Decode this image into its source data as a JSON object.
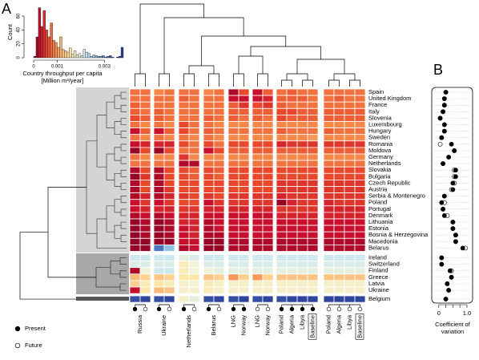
{
  "chart_data": [
    {
      "type": "histogram",
      "ylabel": "Count",
      "xlabel": [
        "Country throughput per capita",
        "[Million m³/year]"
      ],
      "bins": [
        0,
        0.0001,
        0.0002,
        0.0003,
        0.0004,
        0.0005,
        0.0006,
        0.0007,
        0.0008,
        0.0009,
        0.001,
        0.0011,
        0.0012,
        0.0013,
        0.0014,
        0.0015,
        0.0016,
        0.0017,
        0.0018,
        0.0019,
        0.002,
        0.0021,
        0.0022,
        0.0023,
        0.0024,
        0.0025,
        0.0026,
        0.0027,
        0.0028,
        0.0029,
        0.003,
        0.0031,
        0.0032,
        0.0033,
        0.0034,
        0.0035,
        0.0036,
        0.0037,
        0.0038
      ],
      "values": [
        2,
        30,
        72,
        45,
        68,
        40,
        30,
        50,
        25,
        22,
        15,
        30,
        12,
        10,
        8,
        14,
        5,
        10,
        4,
        6,
        3,
        12,
        8,
        6,
        2,
        4,
        3,
        2,
        2,
        3,
        1,
        2,
        3,
        1,
        0,
        1,
        2,
        15
      ],
      "xlim": [
        0,
        0.0038
      ],
      "xticks": [
        0,
        0.001,
        0.003
      ],
      "ylim": [
        0,
        75
      ],
      "yticks": [
        0,
        20,
        40,
        60
      ],
      "color_scale": [
        {
          "value": 0,
          "color": "#7a0022"
        },
        {
          "value": 0.0003,
          "color": "#c8102e"
        },
        {
          "value": 0.0006,
          "color": "#e8492c"
        },
        {
          "value": 0.0009,
          "color": "#f4874a"
        },
        {
          "value": 0.0012,
          "color": "#f9b978"
        },
        {
          "value": 0.0016,
          "color": "#fde7a8"
        },
        {
          "value": 0.0019,
          "color": "#f0f3d8"
        },
        {
          "value": 0.0022,
          "color": "#cfe8f0"
        },
        {
          "value": 0.0026,
          "color": "#8fc3e0"
        },
        {
          "value": 0.003,
          "color": "#4a78be"
        },
        {
          "value": 0.0036,
          "color": "#2a3a96"
        }
      ]
    },
    {
      "type": "heatmap",
      "panel": "A",
      "rows": [
        "Spain",
        "United Kingdom",
        "France",
        "Italy",
        "Slovenia",
        "Luxembourg",
        "Hungary",
        "Sweden",
        "Romania",
        "Moldova",
        "Germany",
        "Netherlands",
        "Slovakia",
        "Bulgaria",
        "Czech Republic",
        "Austria",
        "Serbia & Montenegro",
        "Poland",
        "Portugal",
        "Denmark",
        "Lithuania",
        "Estonia",
        "Bosnia & Herzegovina",
        "Macedonia",
        "Belarus",
        "Ireland",
        "Switzerland",
        "Finland",
        "Greece",
        "Latvia",
        "Ukraine",
        "Belgium"
      ],
      "categories": [
        "Russia",
        null,
        "Ukraine",
        null,
        "Netherlands",
        null,
        "Belarus",
        null,
        "LNG",
        "Norway",
        "LNG",
        "Norway",
        "Poland",
        "Algeria",
        "Libya",
        "Baseline",
        "Poland",
        "Algeria",
        "Libya",
        "Baseline"
      ],
      "future": [
        false,
        true,
        false,
        true,
        false,
        true,
        false,
        true,
        false,
        false,
        true,
        true,
        false,
        false,
        false,
        false,
        true,
        true,
        true,
        true
      ],
      "boxed": [
        false,
        false,
        false,
        false,
        false,
        false,
        false,
        false,
        false,
        false,
        false,
        false,
        false,
        false,
        false,
        true,
        false,
        false,
        false,
        true
      ],
      "values": [
        [
          0.0008,
          0.0008,
          0.0009,
          0.0008,
          0.0008,
          0.0008,
          0.0009,
          0.0008,
          0.0002,
          0.0006,
          0.0003,
          0.0007,
          0.0008,
          0.0007,
          0.0008,
          0.0008,
          0.0008,
          0.0008,
          0.0008,
          0.0008
        ],
        [
          0.0008,
          0.0008,
          0.0008,
          0.0008,
          0.0007,
          0.0008,
          0.0008,
          0.0008,
          0.0003,
          0.0003,
          0.0003,
          0.0004,
          0.0007,
          0.0007,
          0.0007,
          0.0008,
          0.0008,
          0.0007,
          0.0008,
          0.0008
        ],
        [
          0.0007,
          0.0008,
          0.0008,
          0.0008,
          0.0008,
          0.0008,
          0.0008,
          0.0008,
          0.0007,
          0.0005,
          0.0006,
          0.0005,
          0.0007,
          0.0008,
          0.0008,
          0.0008,
          0.0008,
          0.0008,
          0.0008,
          0.0008
        ],
        [
          0.0007,
          0.0008,
          0.0007,
          0.0008,
          0.0008,
          0.0008,
          0.0008,
          0.0008,
          0.0007,
          0.0007,
          0.0007,
          0.0007,
          0.0006,
          0.0006,
          0.0007,
          0.0007,
          0.0007,
          0.0007,
          0.0007,
          0.0007
        ],
        [
          0.0006,
          0.0007,
          0.0007,
          0.0008,
          0.0008,
          0.0008,
          0.0007,
          0.0008,
          0.0007,
          0.0008,
          0.0007,
          0.0008,
          0.0006,
          0.0007,
          0.0007,
          0.0007,
          0.0007,
          0.0007,
          0.0007,
          0.0007
        ],
        [
          0.0008,
          0.0009,
          0.0008,
          0.0009,
          0.0006,
          0.0008,
          0.0008,
          0.0009,
          0.0009,
          0.0009,
          0.0009,
          0.0009,
          0.0009,
          0.0009,
          0.0009,
          0.0009,
          0.0009,
          0.0009,
          0.0009,
          0.0009
        ],
        [
          0.0003,
          0.0007,
          0.0003,
          0.0007,
          0.0006,
          0.0008,
          0.0007,
          0.0008,
          0.0008,
          0.0008,
          0.0008,
          0.0008,
          0.0007,
          0.0008,
          0.0008,
          0.0008,
          0.0007,
          0.0008,
          0.0008,
          0.0008
        ],
        [
          0.0008,
          0.0009,
          0.0008,
          0.0009,
          0.0008,
          0.0009,
          0.0008,
          0.0009,
          0.0009,
          0.0009,
          0.0009,
          0.0009,
          0.0009,
          0.0009,
          0.0009,
          0.001,
          0.0009,
          0.0009,
          0.0009,
          0.0009
        ],
        [
          0.0003,
          0.0004,
          0.0004,
          0.0004,
          0.0006,
          0.0008,
          0.0006,
          0.0008,
          0.0006,
          0.0006,
          0.0006,
          0.0006,
          0.0004,
          0.0005,
          0.0005,
          0.0005,
          0.0005,
          0.0005,
          0.0005,
          0.0005
        ],
        [
          0.0001,
          0.0006,
          0.0001,
          0.0006,
          0.0008,
          0.0008,
          0.0003,
          0.0006,
          0.0007,
          0.0007,
          0.0007,
          0.0007,
          0.0007,
          0.0007,
          0.0007,
          0.0007,
          0.0007,
          0.0007,
          0.0007,
          0.0007
        ],
        [
          0.0008,
          0.0009,
          0.0009,
          0.0009,
          0.0005,
          0.0009,
          0.0009,
          0.0009,
          0.0009,
          0.0009,
          0.0009,
          0.0009,
          0.0009,
          0.0009,
          0.0009,
          0.0009,
          0.0009,
          0.0009,
          0.0009,
          0.0009
        ],
        [
          0.0008,
          0.0008,
          0.0008,
          0.0008,
          0.0002,
          0.0002,
          0.0008,
          0.0008,
          0.0008,
          0.0008,
          0.0008,
          0.0008,
          0.0008,
          0.0008,
          0.0008,
          0.0008,
          0.0008,
          0.0008,
          0.0008,
          0.0008
        ],
        [
          0.0002,
          0.0006,
          0.0002,
          0.0006,
          0.0006,
          0.0007,
          0.0006,
          0.0007,
          0.0006,
          0.0006,
          0.0006,
          0.0006,
          0.0006,
          0.0006,
          0.0006,
          0.0006,
          0.0006,
          0.0006,
          0.0006,
          0.0006
        ],
        [
          0.0001,
          0.0005,
          0.0002,
          0.0006,
          0.0006,
          0.0007,
          0.0006,
          0.0007,
          0.0006,
          0.0006,
          0.0006,
          0.0006,
          0.0006,
          0.0006,
          0.0006,
          0.0006,
          0.0006,
          0.0006,
          0.0006,
          0.0006
        ],
        [
          0.0002,
          0.0006,
          0.0002,
          0.0006,
          0.0006,
          0.0006,
          0.0006,
          0.0006,
          0.0006,
          0.0006,
          0.0006,
          0.0006,
          0.0005,
          0.0005,
          0.0005,
          0.0005,
          0.0005,
          0.0005,
          0.0005,
          0.0005
        ],
        [
          0.0002,
          0.0006,
          0.0002,
          0.0005,
          0.0006,
          0.0006,
          0.0006,
          0.0006,
          0.0006,
          0.0006,
          0.0006,
          0.0006,
          0.0005,
          0.0005,
          0.0005,
          0.0005,
          0.0005,
          0.0005,
          0.0005,
          0.0005
        ],
        [
          0.0002,
          0.0004,
          0.0002,
          0.0004,
          0.0005,
          0.0006,
          0.0005,
          0.0006,
          0.0005,
          0.0005,
          0.0005,
          0.0005,
          0.0004,
          0.0005,
          0.0005,
          0.0005,
          0.0005,
          0.0005,
          0.0005,
          0.0005
        ],
        [
          0.0003,
          0.0005,
          0.0003,
          0.0005,
          0.0006,
          0.0006,
          0.0003,
          0.0005,
          0.0005,
          0.0005,
          0.0005,
          0.0005,
          0.0001,
          0.0004,
          0.0005,
          0.0005,
          0.0004,
          0.0005,
          0.0005,
          0.0005
        ],
        [
          0.0003,
          0.0004,
          0.0004,
          0.0004,
          0.0005,
          0.0005,
          0.0004,
          0.0004,
          0.0004,
          0.0004,
          0.0004,
          0.0004,
          0.0005,
          0.0005,
          0.0005,
          0.0005,
          0.0004,
          0.0004,
          0.0004,
          0.0004
        ],
        [
          0.0002,
          0.0003,
          0.0002,
          0.0003,
          0.0004,
          0.0004,
          0.0003,
          0.0003,
          0.0003,
          0.0003,
          0.0003,
          0.0003,
          0.0004,
          0.0004,
          0.0004,
          0.0004,
          0.0004,
          0.0004,
          0.0004,
          0.0004
        ],
        [
          0.0001,
          0.0002,
          0.0001,
          0.0002,
          0.0004,
          0.0004,
          0.0002,
          0.0003,
          0.0003,
          0.0003,
          0.0003,
          0.0003,
          0.0003,
          0.0003,
          0.0003,
          0.0003,
          0.0003,
          0.0003,
          0.0003,
          0.0003
        ],
        [
          0.0001,
          0.0002,
          0.0001,
          0.0002,
          0.0003,
          0.0004,
          0.0002,
          0.0003,
          0.0003,
          0.0003,
          0.0003,
          0.0003,
          0.0003,
          0.0003,
          0.0003,
          0.0003,
          0.0003,
          0.0003,
          0.0003,
          0.0003
        ],
        [
          0.0001,
          0.0002,
          0.0001,
          0.0002,
          0.0003,
          0.0004,
          0.0002,
          0.0002,
          0.0003,
          0.0003,
          0.0003,
          0.0003,
          0.0003,
          0.0003,
          0.0003,
          0.0003,
          0.0003,
          0.0003,
          0.0003,
          0.0003
        ],
        [
          0.0001,
          0.0001,
          0.0001,
          0.0001,
          0.0003,
          0.0003,
          0.0001,
          0.0001,
          0.0002,
          0.0002,
          0.0002,
          0.0002,
          0.0002,
          0.0002,
          0.0002,
          0.0002,
          0.0002,
          0.0002,
          0.0002,
          0.0002
        ],
        [
          0.0001,
          0.0001,
          0.003,
          0.0026,
          0.0002,
          0.0003,
          0.0001,
          0.0001,
          0.0002,
          0.0002,
          0.0002,
          0.0002,
          0.0002,
          0.0002,
          0.0002,
          0.0002,
          0.0002,
          0.0002,
          0.0002,
          0.0002
        ],
        [
          0.0022,
          0.0022,
          0.0022,
          0.0022,
          0.002,
          0.0021,
          0.0022,
          0.0022,
          0.0022,
          0.0022,
          0.0022,
          0.0022,
          0.0022,
          0.0022,
          0.0022,
          0.0022,
          0.0022,
          0.0022,
          0.0022,
          0.0022
        ],
        [
          0.0021,
          0.0021,
          0.0021,
          0.0021,
          0.0017,
          0.0019,
          0.0021,
          0.0021,
          0.0021,
          0.0021,
          0.0021,
          0.0021,
          0.0021,
          0.0021,
          0.0021,
          0.0021,
          0.0021,
          0.0021,
          0.0021,
          0.0021
        ],
        [
          0.0002,
          0.0019,
          0.0022,
          0.0022,
          0.0017,
          0.0019,
          0.0019,
          0.002,
          0.002,
          0.002,
          0.002,
          0.002,
          0.002,
          0.002,
          0.002,
          0.002,
          0.002,
          0.002,
          0.002,
          0.002
        ],
        [
          0.0012,
          0.0014,
          0.0013,
          0.0014,
          0.0016,
          0.0016,
          0.0013,
          0.0014,
          0.001,
          0.0014,
          0.001,
          0.0014,
          0.0013,
          0.0013,
          0.0013,
          0.0013,
          0.0013,
          0.0013,
          0.0013,
          0.0013
        ],
        [
          0.0014,
          0.0017,
          0.0016,
          0.0017,
          0.0018,
          0.0019,
          0.0017,
          0.0018,
          0.0018,
          0.0018,
          0.0018,
          0.0018,
          0.0018,
          0.0018,
          0.0018,
          0.0018,
          0.0018,
          0.0018,
          0.0018,
          0.0018
        ],
        [
          0.0003,
          0.0016,
          0.0012,
          0.0013,
          0.0018,
          0.0018,
          0.0017,
          0.0018,
          0.0018,
          0.0018,
          0.0018,
          0.0018,
          0.0018,
          0.0018,
          0.0018,
          0.0018,
          0.0018,
          0.0018,
          0.0018,
          0.0018
        ],
        [
          0.0034,
          0.0035,
          0.0034,
          0.0035,
          0.0018,
          0.002,
          0.0034,
          0.0035,
          0.0034,
          0.0035,
          0.0034,
          0.0035,
          0.0034,
          0.0035,
          0.0035,
          0.0035,
          0.0035,
          0.0035,
          0.0035,
          0.0035
        ]
      ]
    },
    {
      "type": "dot",
      "panel": "B",
      "xlabel": [
        "Coefficient of",
        "variation"
      ],
      "xlim": [
        -0.25,
        1.2
      ],
      "xticks": [
        0,
        {
          "value": 1,
          "label": "1.0"
        }
      ],
      "xminor_ticks": [
        0.25,
        0.5,
        0.75
      ],
      "series": [
        {
          "name": "Present",
          "color": "#000000",
          "filled": true,
          "values": [
            0.25,
            0.2,
            0.2,
            0.15,
            0.05,
            0.2,
            0.2,
            0.1,
            0.45,
            0.55,
            0.35,
            0.15,
            0.6,
            0.6,
            0.5,
            0.5,
            0.2,
            0.1,
            0.15,
            0.2,
            0.5,
            0.5,
            0.6,
            0.6,
            0.85,
            0.1,
            0.1,
            0.4,
            0.45,
            0.3,
            0.35,
            0.25
          ]
        },
        {
          "name": "Future",
          "color": "#000000",
          "filled": false,
          "values": [
            0.25,
            0.2,
            0.2,
            0.15,
            0.05,
            0.2,
            0.2,
            0.1,
            0.05,
            0.55,
            0.35,
            0.15,
            0.55,
            0.55,
            0.55,
            0.45,
            0.2,
            0.2,
            0.15,
            0.3,
            0.5,
            0.5,
            0.6,
            0.6,
            0.95,
            0.1,
            0.1,
            0.45,
            0.45,
            0.3,
            0.35,
            0.25
          ]
        }
      ]
    }
  ]
}
